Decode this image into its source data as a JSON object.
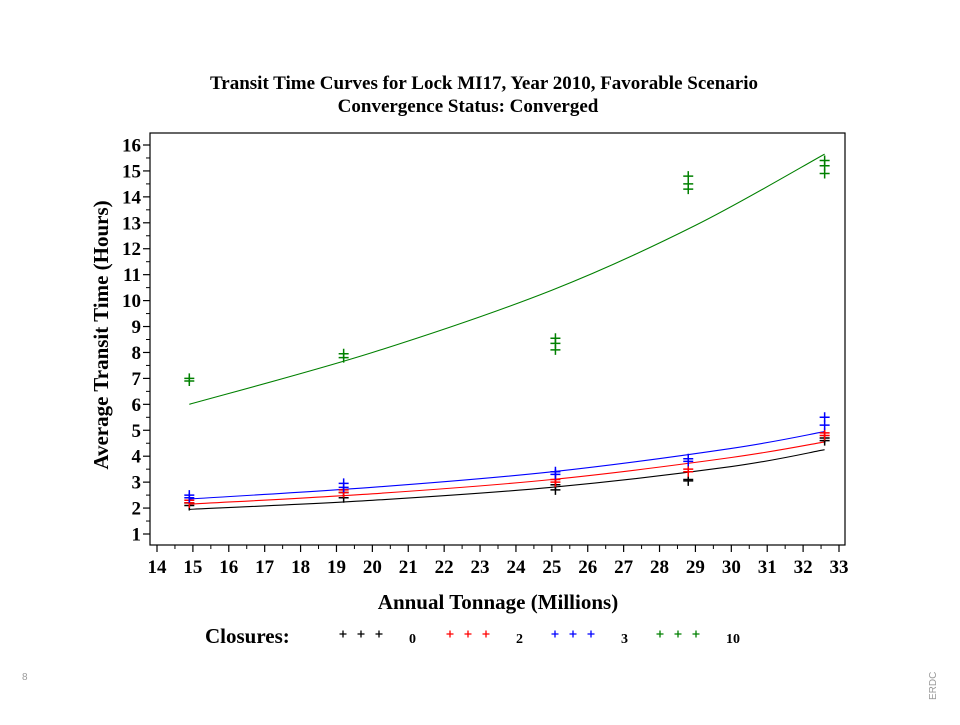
{
  "chart_data": {
    "type": "scatter",
    "title": "Transit Time Curves for Lock MI17, Year 2010, Favorable Scenario",
    "subtitle": "Convergence Status: Converged",
    "xlabel": "Annual Tonnage (Millions)",
    "ylabel": "Average Transit Time (Hours)",
    "xlim": [
      14,
      33
    ],
    "ylim": [
      1,
      16
    ],
    "xticks": [
      14,
      15,
      16,
      17,
      18,
      19,
      20,
      21,
      22,
      23,
      24,
      25,
      26,
      27,
      28,
      29,
      30,
      31,
      32,
      33
    ],
    "yticks": [
      1,
      2,
      3,
      4,
      5,
      6,
      7,
      8,
      9,
      10,
      11,
      12,
      13,
      14,
      15,
      16
    ],
    "grid": false,
    "legend": {
      "title": "Closures:",
      "placement": "bottom"
    },
    "series": [
      {
        "name": "0",
        "color": "#000000",
        "points": [
          [
            14.9,
            2.1
          ],
          [
            14.9,
            2.2
          ],
          [
            19.2,
            2.4
          ],
          [
            19.2,
            2.6
          ],
          [
            25.1,
            2.7
          ],
          [
            25.1,
            2.9
          ],
          [
            28.8,
            3.05
          ],
          [
            28.8,
            3.1
          ],
          [
            32.6,
            4.6
          ],
          [
            32.6,
            4.7
          ]
        ],
        "curve": [
          [
            14.9,
            1.95
          ],
          [
            20,
            2.3
          ],
          [
            25,
            2.8
          ],
          [
            30,
            3.6
          ],
          [
            32.6,
            4.25
          ]
        ]
      },
      {
        "name": "2",
        "color": "#ff0000",
        "points": [
          [
            14.9,
            2.2
          ],
          [
            14.9,
            2.3
          ],
          [
            19.2,
            2.6
          ],
          [
            19.2,
            2.7
          ],
          [
            25.1,
            3.0
          ],
          [
            25.1,
            3.1
          ],
          [
            28.8,
            3.4
          ],
          [
            28.8,
            3.5
          ],
          [
            32.6,
            4.8
          ],
          [
            32.6,
            4.9
          ]
        ],
        "curve": [
          [
            14.9,
            2.15
          ],
          [
            20,
            2.55
          ],
          [
            25,
            3.1
          ],
          [
            30,
            3.95
          ],
          [
            32.6,
            4.55
          ]
        ]
      },
      {
        "name": "3",
        "color": "#0000ff",
        "points": [
          [
            14.9,
            2.4
          ],
          [
            14.9,
            2.5
          ],
          [
            19.2,
            2.8
          ],
          [
            19.2,
            2.95
          ],
          [
            25.1,
            3.3
          ],
          [
            25.1,
            3.4
          ],
          [
            28.8,
            3.8
          ],
          [
            28.8,
            3.9
          ],
          [
            32.6,
            5.2
          ],
          [
            32.6,
            5.5
          ]
        ],
        "curve": [
          [
            14.9,
            2.35
          ],
          [
            20,
            2.8
          ],
          [
            25,
            3.4
          ],
          [
            30,
            4.3
          ],
          [
            32.6,
            4.95
          ]
        ]
      },
      {
        "name": "10",
        "color": "#008000",
        "points": [
          [
            14.9,
            6.9
          ],
          [
            14.9,
            7.0
          ],
          [
            19.2,
            7.8
          ],
          [
            19.2,
            7.95
          ],
          [
            25.1,
            8.1
          ],
          [
            25.1,
            8.35
          ],
          [
            25.1,
            8.55
          ],
          [
            28.8,
            14.3
          ],
          [
            28.8,
            14.5
          ],
          [
            28.8,
            14.8
          ],
          [
            32.6,
            14.9
          ],
          [
            32.6,
            15.2
          ],
          [
            32.6,
            15.4
          ]
        ],
        "curve": [
          [
            14.9,
            6.0
          ],
          [
            20,
            8.0
          ],
          [
            25,
            10.4
          ],
          [
            29,
            12.9
          ],
          [
            32.6,
            15.65
          ]
        ]
      }
    ]
  },
  "footer": {
    "left": "8",
    "right": "ERDC"
  }
}
